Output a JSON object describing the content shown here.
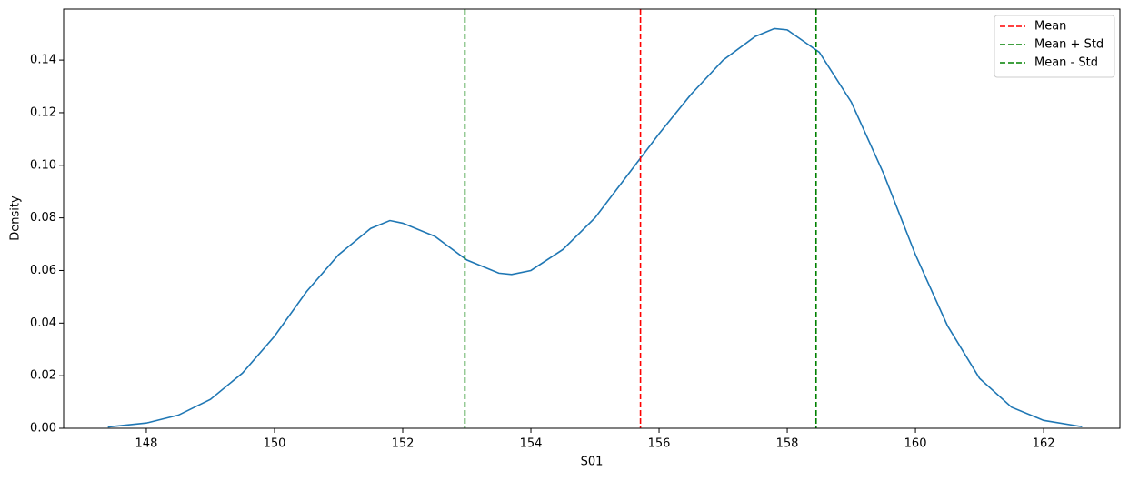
{
  "chart_data": {
    "type": "line",
    "xlabel": "S01",
    "ylabel": "Density",
    "x": [
      147.4,
      148,
      148.5,
      149,
      149.5,
      150,
      150.5,
      151,
      151.5,
      151.8,
      152,
      152.5,
      153,
      153.5,
      153.7,
      154,
      154.5,
      155,
      155.5,
      156,
      156.5,
      157,
      157.5,
      157.8,
      158,
      158.5,
      159,
      159.5,
      160,
      160.5,
      161,
      161.5,
      162,
      162.6
    ],
    "series": [
      {
        "color": "#1f77b4",
        "values": [
          0.0005,
          0.002,
          0.005,
          0.011,
          0.021,
          0.035,
          0.052,
          0.066,
          0.076,
          0.079,
          0.078,
          0.073,
          0.064,
          0.059,
          0.0585,
          0.06,
          0.068,
          0.08,
          0.096,
          0.112,
          0.127,
          0.14,
          0.149,
          0.152,
          0.1515,
          0.143,
          0.124,
          0.097,
          0.066,
          0.039,
          0.019,
          0.008,
          0.003,
          0.0006
        ]
      }
    ],
    "vlines": [
      {
        "name": "Mean",
        "color": "#ff0000",
        "x": 155.71
      },
      {
        "name": "Mean + Std",
        "color": "#008000",
        "x": 158.45
      },
      {
        "name": "Mean - Std",
        "color": "#008000",
        "x": 152.97
      }
    ],
    "xlim": [
      146.71,
      163.19
    ],
    "ylim": [
      0,
      0.1594
    ],
    "xticks": [
      148,
      150,
      152,
      154,
      156,
      158,
      160,
      162
    ],
    "yticks": [
      {
        "value": 0,
        "label": "0.00"
      },
      0.02,
      0.04,
      0.06,
      0.08,
      {
        "value": 0.1,
        "label": "0.10"
      },
      0.12,
      0.14
    ],
    "legend": "upper right"
  }
}
